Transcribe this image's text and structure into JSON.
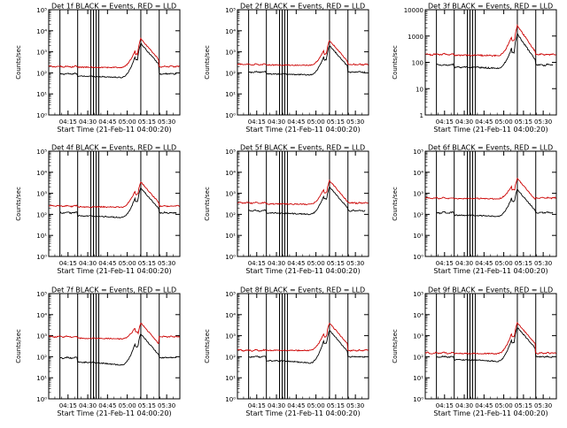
{
  "figure": {
    "colors": {
      "events": "#000000",
      "lld": "#cc0000",
      "axes": "#000000",
      "background": "#ffffff"
    },
    "x_tick_labels": [
      "04:15",
      "04:30",
      "04:45",
      "05:00",
      "05:15",
      "05:30"
    ],
    "xlabel": "Start Time (21-Feb-11 04:00:20)",
    "ylabel": "Counts/sec"
  },
  "chart_data": [
    {
      "type": "line",
      "title": "Det 1f BLACK = Events, RED = LLD",
      "ylabel": "Counts/sec",
      "xlabel": "Start Time (21-Feb-11 04:00:20)",
      "x_range": [
        "04:00:20",
        "05:40"
      ],
      "yscale": "log",
      "ylim": [
        1,
        100000
      ],
      "y_tick_labels": [
        "10⁰",
        "10¹",
        "10²",
        "10³",
        "10⁴",
        "10⁵"
      ],
      "series": [
        {
          "name": "Events",
          "color": "black",
          "baseline": 90,
          "pre_flare": 60,
          "peak1": 700,
          "peak2": 2500
        },
        {
          "name": "LLD",
          "color": "red",
          "baseline": 200,
          "pre_flare": 180,
          "peak1": 1300,
          "peak2": 4200
        }
      ]
    },
    {
      "type": "line",
      "title": "Det 2f BLACK = Events, RED = LLD",
      "ylabel": "Counts/sec",
      "xlabel": "Start Time (21-Feb-11 04:00:20)",
      "x_range": [
        "04:00:20",
        "05:40"
      ],
      "yscale": "log",
      "ylim": [
        1,
        100000
      ],
      "y_tick_labels": [
        "10⁰",
        "10¹",
        "10²",
        "10³",
        "10⁴",
        "10⁵"
      ],
      "series": [
        {
          "name": "Events",
          "color": "black",
          "baseline": 110,
          "pre_flare": 80,
          "peak1": 700,
          "peak2": 2000
        },
        {
          "name": "LLD",
          "color": "red",
          "baseline": 250,
          "pre_flare": 230,
          "peak1": 1300,
          "peak2": 3500
        }
      ]
    },
    {
      "type": "line",
      "title": "Det 3f BLACK = Events, RED = LLD",
      "ylabel": "Counts/sec",
      "xlabel": "Start Time (21-Feb-11 04:00:20)",
      "x_range": [
        "04:00:20",
        "05:40"
      ],
      "yscale": "log",
      "ylim": [
        1,
        10000
      ],
      "y_tick_labels": [
        "1",
        "10",
        "100",
        "1000",
        "10000"
      ],
      "series": [
        {
          "name": "Events",
          "color": "black",
          "baseline": 80,
          "pre_flare": 60,
          "peak1": 400,
          "peak2": 1200
        },
        {
          "name": "LLD",
          "color": "red",
          "baseline": 200,
          "pre_flare": 180,
          "peak1": 1100,
          "peak2": 2500
        }
      ]
    },
    {
      "type": "line",
      "title": "Det 4f BLACK = Events, RED = LLD",
      "ylabel": "Counts/sec",
      "xlabel": "Start Time (21-Feb-11 04:00:20)",
      "x_range": [
        "04:00:20",
        "05:40"
      ],
      "yscale": "log",
      "ylim": [
        1,
        100000
      ],
      "y_tick_labels": [
        "10⁰",
        "10¹",
        "10²",
        "10³",
        "10⁴",
        "10⁵"
      ],
      "series": [
        {
          "name": "Events",
          "color": "black",
          "baseline": 120,
          "pre_flare": 70,
          "peak1": 700,
          "peak2": 1800
        },
        {
          "name": "LLD",
          "color": "red",
          "baseline": 250,
          "pre_flare": 220,
          "peak1": 1500,
          "peak2": 3500
        }
      ]
    },
    {
      "type": "line",
      "title": "Det 5f BLACK = Events, RED = LLD",
      "ylabel": "Counts/sec",
      "xlabel": "Start Time (21-Feb-11 04:00:20)",
      "x_range": [
        "04:00:20",
        "05:40"
      ],
      "yscale": "log",
      "ylim": [
        1,
        100000
      ],
      "y_tick_labels": [
        "10⁰",
        "10¹",
        "10²",
        "10³",
        "10⁴",
        "10⁵"
      ],
      "series": [
        {
          "name": "Events",
          "color": "black",
          "baseline": 150,
          "pre_flare": 100,
          "peak1": 900,
          "peak2": 2000
        },
        {
          "name": "LLD",
          "color": "red",
          "baseline": 350,
          "pre_flare": 300,
          "peak1": 1800,
          "peak2": 4000
        }
      ]
    },
    {
      "type": "line",
      "title": "Det 6f BLACK = Events, RED = LLD",
      "ylabel": "Counts/sec",
      "xlabel": "Start Time (21-Feb-11 04:00:20)",
      "x_range": [
        "04:00:20",
        "05:40"
      ],
      "yscale": "log",
      "ylim": [
        1,
        100000
      ],
      "y_tick_labels": [
        "10⁰",
        "10¹",
        "10²",
        "10³",
        "10⁴",
        "10⁵"
      ],
      "series": [
        {
          "name": "Events",
          "color": "black",
          "baseline": 120,
          "pre_flare": 80,
          "peak1": 700,
          "peak2": 1500
        },
        {
          "name": "LLD",
          "color": "red",
          "baseline": 600,
          "pre_flare": 550,
          "peak1": 2500,
          "peak2": 5000
        }
      ]
    },
    {
      "type": "line",
      "title": "Det 7f BLACK = Events, RED = LLD",
      "ylabel": "Counts/sec",
      "xlabel": "Start Time (21-Feb-11 04:00:20)",
      "x_range": [
        "04:00:20",
        "05:40"
      ],
      "yscale": "log",
      "ylim": [
        1,
        100000
      ],
      "y_tick_labels": [
        "10⁰",
        "10¹",
        "10²",
        "10³",
        "10⁴",
        "10⁵"
      ],
      "series": [
        {
          "name": "Events",
          "color": "black",
          "baseline": 90,
          "pre_flare": 40,
          "peak1": 500,
          "peak2": 1200
        },
        {
          "name": "LLD",
          "color": "red",
          "baseline": 900,
          "pre_flare": 700,
          "peak1": 2500,
          "peak2": 4000
        }
      ]
    },
    {
      "type": "line",
      "title": "Det 8f BLACK = Events, RED = LLD",
      "ylabel": "Counts/sec",
      "xlabel": "Start Time (21-Feb-11 04:00:20)",
      "x_range": [
        "04:00:20",
        "05:40"
      ],
      "yscale": "log",
      "ylim": [
        1,
        100000
      ],
      "y_tick_labels": [
        "10⁰",
        "10¹",
        "10²",
        "10³",
        "10⁴",
        "10⁵"
      ],
      "series": [
        {
          "name": "Events",
          "color": "black",
          "baseline": 100,
          "pre_flare": 50,
          "peak1": 700,
          "peak2": 1800
        },
        {
          "name": "LLD",
          "color": "red",
          "baseline": 200,
          "pre_flare": 200,
          "peak1": 1500,
          "peak2": 4000
        }
      ]
    },
    {
      "type": "line",
      "title": "Det 9f BLACK = Events, RED = LLD",
      "ylabel": "Counts/sec",
      "xlabel": "Start Time (21-Feb-11 04:00:20)",
      "x_range": [
        "04:00:20",
        "05:40"
      ],
      "yscale": "log",
      "ylim": [
        1,
        100000
      ],
      "y_tick_labels": [
        "10⁰",
        "10¹",
        "10²",
        "10³",
        "10⁴",
        "10⁵"
      ],
      "series": [
        {
          "name": "Events",
          "color": "black",
          "baseline": 100,
          "pre_flare": 60,
          "peak1": 800,
          "peak2": 2500
        },
        {
          "name": "LLD",
          "color": "red",
          "baseline": 150,
          "pre_flare": 140,
          "peak1": 1500,
          "peak2": 4000
        }
      ]
    }
  ]
}
